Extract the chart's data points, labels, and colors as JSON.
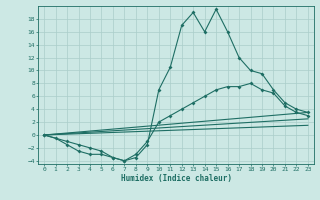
{
  "xlabel": "Humidex (Indice chaleur)",
  "background_color": "#cce8e4",
  "grid_color": "#aaceca",
  "line_color": "#1e6e64",
  "xlim": [
    -0.5,
    23.5
  ],
  "ylim": [
    -4.5,
    20
  ],
  "xticks": [
    0,
    1,
    2,
    3,
    4,
    5,
    6,
    7,
    8,
    9,
    10,
    11,
    12,
    13,
    14,
    15,
    16,
    17,
    18,
    19,
    20,
    21,
    22,
    23
  ],
  "yticks": [
    -4,
    -2,
    0,
    2,
    4,
    6,
    8,
    10,
    12,
    14,
    16,
    18
  ],
  "line1_x": [
    0,
    1,
    2,
    3,
    4,
    5,
    6,
    7,
    8,
    9,
    10,
    11,
    12,
    13,
    14,
    15,
    16,
    17,
    18,
    19,
    20,
    21,
    22,
    23
  ],
  "line1_y": [
    0,
    -0.5,
    -1.5,
    -2.5,
    -3,
    -3,
    -3.5,
    -4,
    -3.5,
    -1.5,
    7,
    10.5,
    17,
    19,
    16,
    19.5,
    16,
    12,
    10,
    9.5,
    7,
    5,
    4,
    3.5
  ],
  "line2_x": [
    0,
    2,
    3,
    4,
    5,
    6,
    7,
    8,
    9,
    10,
    11,
    12,
    13,
    14,
    15,
    16,
    17,
    18,
    19,
    20,
    21,
    22,
    23
  ],
  "line2_y": [
    0,
    -1,
    -1.5,
    -2,
    -2.5,
    -3.5,
    -4,
    -3,
    -1,
    2,
    3,
    4,
    5,
    6,
    7,
    7.5,
    7.5,
    8,
    7,
    6.5,
    4.5,
    3.5,
    3
  ],
  "line3_x": [
    0,
    23
  ],
  "line3_y": [
    0,
    3.5
  ],
  "line4_x": [
    0,
    23
  ],
  "line4_y": [
    0,
    2.5
  ],
  "line5_x": [
    0,
    23
  ],
  "line5_y": [
    0,
    1.5
  ]
}
